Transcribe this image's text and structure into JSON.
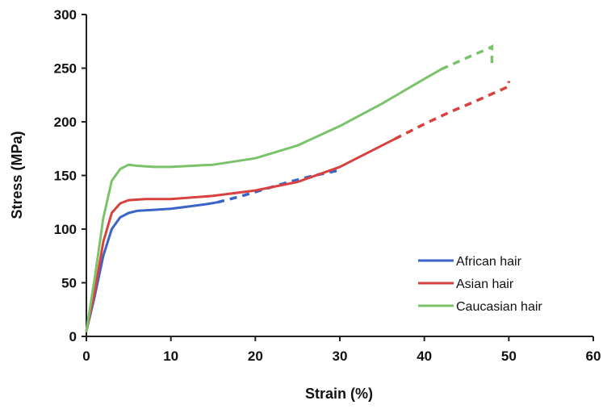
{
  "chart_data": {
    "type": "line",
    "xlabel": "Strain (%)",
    "ylabel": "Stress (MPa)",
    "xlim": [
      0,
      60
    ],
    "ylim": [
      0,
      300
    ],
    "xticks": [
      0,
      10,
      20,
      30,
      40,
      50,
      60
    ],
    "yticks": [
      0,
      50,
      100,
      150,
      200,
      250,
      300
    ],
    "grid": false,
    "legend_position": "bottom-right",
    "series": [
      {
        "name": "African hair",
        "color": "#3a64c8",
        "points": [
          [
            0,
            5
          ],
          [
            1,
            38
          ],
          [
            2,
            75
          ],
          [
            3,
            100
          ],
          [
            4,
            111
          ],
          [
            5,
            115
          ],
          [
            6,
            117
          ],
          [
            8,
            118
          ],
          [
            10,
            119
          ],
          [
            12,
            121
          ],
          [
            14,
            123
          ],
          [
            15.5,
            125
          ]
        ],
        "dashed_points": [
          [
            15.5,
            125
          ],
          [
            18,
            130
          ],
          [
            21,
            137
          ],
          [
            24,
            144
          ],
          [
            27,
            150
          ],
          [
            30,
            155
          ]
        ]
      },
      {
        "name": "Asian hair",
        "color": "#d9413f",
        "points": [
          [
            0,
            5
          ],
          [
            1,
            42
          ],
          [
            2,
            88
          ],
          [
            3,
            115
          ],
          [
            4,
            124
          ],
          [
            5,
            127
          ],
          [
            7,
            128
          ],
          [
            10,
            128
          ],
          [
            15,
            131
          ],
          [
            20,
            136
          ],
          [
            25,
            144
          ],
          [
            30,
            158
          ],
          [
            33,
            170
          ],
          [
            36.5,
            184
          ]
        ],
        "dashed_points": [
          [
            36.5,
            184
          ],
          [
            40,
            198
          ],
          [
            43,
            209
          ],
          [
            46,
            219
          ],
          [
            48,
            226
          ],
          [
            50,
            233
          ],
          [
            50,
            238
          ]
        ]
      },
      {
        "name": "Caucasian hair",
        "color": "#7ac36a",
        "points": [
          [
            0,
            5
          ],
          [
            1,
            55
          ],
          [
            2,
            110
          ],
          [
            3,
            145
          ],
          [
            4,
            156
          ],
          [
            5,
            160
          ],
          [
            6,
            159
          ],
          [
            8,
            158
          ],
          [
            10,
            158
          ],
          [
            15,
            160
          ],
          [
            20,
            166
          ],
          [
            25,
            178
          ],
          [
            30,
            196
          ],
          [
            35,
            217
          ],
          [
            40,
            240
          ],
          [
            42,
            249
          ]
        ],
        "dashed_points": [
          [
            42,
            249
          ],
          [
            44,
            256
          ],
          [
            46,
            263
          ],
          [
            47.5,
            268
          ],
          [
            48,
            270
          ],
          [
            48,
            262
          ],
          [
            48,
            250
          ]
        ]
      }
    ]
  }
}
